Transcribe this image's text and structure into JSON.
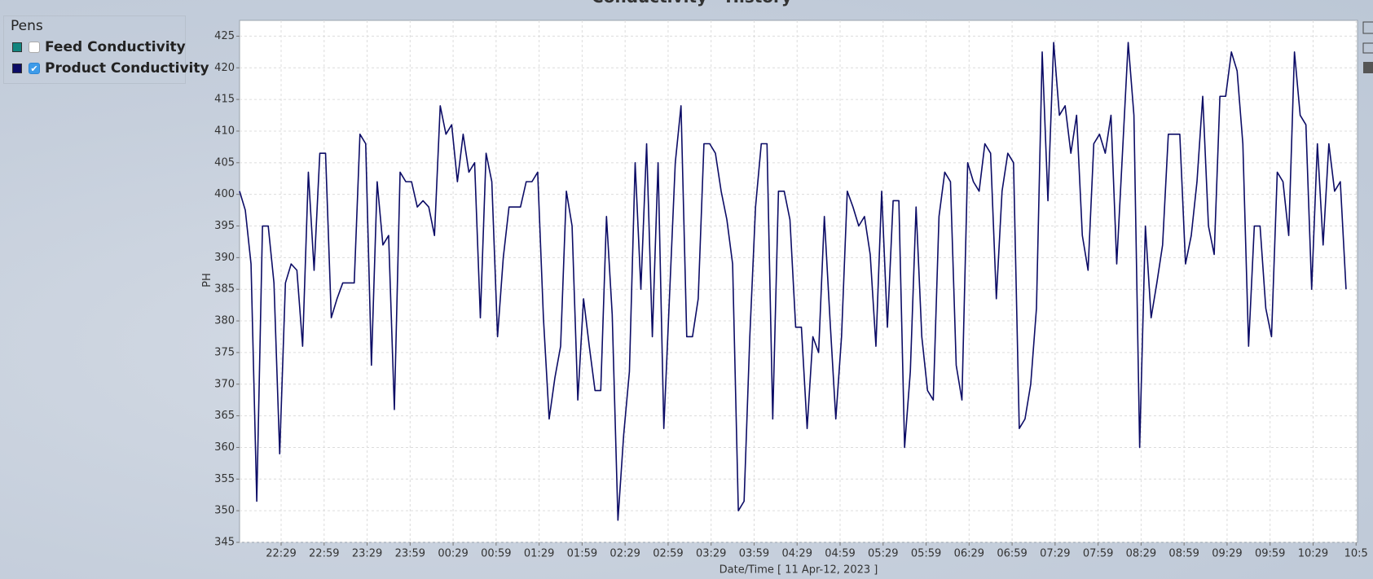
{
  "chart_data": {
    "type": "line",
    "title": "Conductivity - History",
    "x_label": "Date/Time  [ 11 Apr-12, 2023 ]",
    "y_label": "PH",
    "grid": true,
    "legend": {
      "title": "Pens"
    },
    "xlim": [
      1320,
      2100
    ],
    "ylim": [
      345,
      427.5
    ],
    "yticks": [
      345,
      350,
      355,
      360,
      365,
      370,
      375,
      380,
      385,
      390,
      395,
      400,
      405,
      410,
      415,
      420,
      425
    ],
    "xticks": [
      {
        "value": 1349,
        "label": "22:29"
      },
      {
        "value": 1379,
        "label": "22:59"
      },
      {
        "value": 1409,
        "label": "23:29"
      },
      {
        "value": 1439,
        "label": "23:59"
      },
      {
        "value": 1469,
        "label": "00:29"
      },
      {
        "value": 1499,
        "label": "00:59"
      },
      {
        "value": 1529,
        "label": "01:29"
      },
      {
        "value": 1559,
        "label": "01:59"
      },
      {
        "value": 1589,
        "label": "02:29"
      },
      {
        "value": 1619,
        "label": "02:59"
      },
      {
        "value": 1649,
        "label": "03:29"
      },
      {
        "value": 1679,
        "label": "03:59"
      },
      {
        "value": 1709,
        "label": "04:29"
      },
      {
        "value": 1739,
        "label": "04:59"
      },
      {
        "value": 1769,
        "label": "05:29"
      },
      {
        "value": 1799,
        "label": "05:59"
      },
      {
        "value": 1829,
        "label": "06:29"
      },
      {
        "value": 1859,
        "label": "06:59"
      },
      {
        "value": 1889,
        "label": "07:29"
      },
      {
        "value": 1919,
        "label": "07:59"
      },
      {
        "value": 1949,
        "label": "08:29"
      },
      {
        "value": 1979,
        "label": "08:59"
      },
      {
        "value": 2009,
        "label": "09:29"
      },
      {
        "value": 2039,
        "label": "09:59"
      },
      {
        "value": 2069,
        "label": "10:29"
      },
      {
        "value": 2099,
        "label": "10:5"
      }
    ],
    "x": [
      1320,
      1324,
      1328,
      1332,
      1336,
      1340,
      1344,
      1348,
      1352,
      1356,
      1360,
      1364,
      1368,
      1372,
      1376,
      1380,
      1384,
      1388,
      1392,
      1396,
      1400,
      1404,
      1408,
      1412,
      1416,
      1420,
      1424,
      1428,
      1432,
      1436,
      1440,
      1444,
      1448,
      1452,
      1456,
      1460,
      1464,
      1468,
      1472,
      1476,
      1480,
      1484,
      1488,
      1492,
      1496,
      1500,
      1504,
      1508,
      1512,
      1516,
      1520,
      1524,
      1528,
      1532,
      1536,
      1540,
      1544,
      1548,
      1552,
      1556,
      1560,
      1564,
      1568,
      1572,
      1576,
      1580,
      1584,
      1588,
      1592,
      1596,
      1600,
      1604,
      1608,
      1612,
      1616,
      1620,
      1624,
      1628,
      1632,
      1636,
      1640,
      1644,
      1648,
      1652,
      1656,
      1660,
      1664,
      1668,
      1672,
      1676,
      1680,
      1684,
      1688,
      1692,
      1696,
      1700,
      1704,
      1708,
      1712,
      1716,
      1720,
      1724,
      1728,
      1732,
      1736,
      1740,
      1744,
      1748,
      1752,
      1756,
      1760,
      1764,
      1768,
      1772,
      1776,
      1780,
      1784,
      1788,
      1792,
      1796,
      1800,
      1804,
      1808,
      1812,
      1816,
      1820,
      1824,
      1828,
      1832,
      1836,
      1840,
      1844,
      1848,
      1852,
      1856,
      1860,
      1864,
      1868,
      1872,
      1876,
      1880,
      1884,
      1888,
      1892,
      1896,
      1900,
      1904,
      1908,
      1912,
      1916,
      1920,
      1924,
      1928,
      1932,
      1936,
      1940,
      1944,
      1948,
      1952,
      1956,
      1960,
      1964,
      1968,
      1972,
      1976,
      1980,
      1984,
      1988,
      1992,
      1996,
      2000,
      2004,
      2008,
      2012,
      2016,
      2020,
      2024,
      2028,
      2032,
      2036,
      2040,
      2044,
      2048,
      2052,
      2056,
      2060,
      2064,
      2068,
      2072,
      2076,
      2080,
      2084,
      2088,
      2092
    ],
    "series": [
      {
        "name": "Feed Conductivity",
        "color": "#12857f",
        "visible": false
      },
      {
        "name": "Product Conductivity",
        "color": "#0c0c66",
        "visible": true,
        "values": [
          400.5,
          397.5,
          389,
          351.5,
          395,
          395,
          386,
          359,
          386,
          389,
          388,
          376,
          403.5,
          388,
          406.5,
          406.5,
          380.5,
          383.5,
          386,
          386,
          386,
          409.5,
          408,
          373,
          402,
          392,
          393.5,
          366,
          403.5,
          402,
          402,
          398,
          399,
          398,
          393.5,
          414,
          409.5,
          411,
          402,
          409.5,
          403.5,
          405,
          380.5,
          406.5,
          402,
          377.5,
          390,
          398,
          398,
          398,
          402,
          402,
          403.5,
          380.5,
          364.5,
          371,
          376,
          400.5,
          395,
          367.5,
          383.5,
          376,
          369,
          369,
          396.5,
          381,
          348.5,
          362,
          372,
          405,
          385,
          408,
          377.5,
          405,
          363,
          384,
          405,
          414,
          377.5,
          377.5,
          383.5,
          408,
          408,
          406.5,
          400.5,
          396,
          389,
          350,
          351.5,
          377.5,
          398,
          408,
          408,
          364.5,
          400.5,
          400.5,
          396,
          379,
          379,
          363,
          377.5,
          375,
          396.5,
          380,
          364.5,
          377.5,
          400.5,
          398,
          395,
          396.5,
          390.5,
          376,
          400.5,
          379,
          399,
          399,
          360,
          372,
          398,
          377.5,
          369,
          367.5,
          396.5,
          403.5,
          402,
          373,
          367.5,
          405,
          402,
          400.5,
          408,
          406.5,
          383.5,
          400.5,
          406.5,
          405,
          363,
          364.5,
          370,
          382,
          422.5,
          399,
          424,
          412.5,
          414,
          406.5,
          412.5,
          393.5,
          388,
          408,
          409.5,
          406.5,
          412.5,
          389,
          406.5,
          424,
          412.5,
          360,
          395,
          380.5,
          386,
          392,
          409.5,
          409.5,
          409.5,
          389,
          393.5,
          402,
          415.5,
          395,
          390.5,
          415.5,
          415.5,
          422.5,
          419.5,
          408,
          376,
          395,
          395,
          382,
          377.5,
          403.5,
          402,
          393.5,
          422.5,
          412.5,
          411,
          385,
          408,
          392,
          408,
          400.5,
          402,
          385
        ]
      }
    ]
  }
}
